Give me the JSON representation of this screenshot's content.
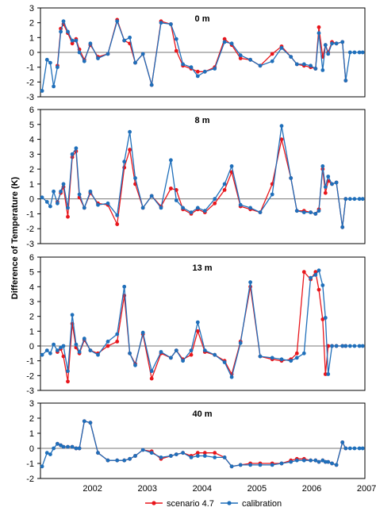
{
  "chart_data": {
    "type": "line",
    "ylabel": "Difference of Temperature (K)",
    "x_ticks": [
      "2002",
      "2003",
      "2004",
      "2005",
      "2006",
      "2007"
    ],
    "legend": {
      "position": "bottom-center",
      "entries": [
        "scenario 4.7",
        "calibration"
      ]
    },
    "colors": {
      "scenario 4.7": "#e8161c",
      "calibration": "#1f6fba"
    },
    "panels": [
      {
        "title": "0 m",
        "ylim": [
          -3,
          3
        ],
        "yticks": [
          -3,
          -2,
          -1,
          0,
          1,
          2,
          3
        ],
        "series": [
          {
            "name": "calibration",
            "x": [
              2001.58,
              2001.67,
              2001.73,
              2001.79,
              2001.86,
              2001.92,
              2001.97,
              2002.05,
              2002.13,
              2002.2,
              2002.26,
              2002.35,
              2002.46,
              2002.6,
              2002.78,
              2002.95,
              2003.08,
              2003.18,
              2003.28,
              2003.42,
              2003.58,
              2003.75,
              2003.93,
              2004.03,
              2004.15,
              2004.3,
              2004.42,
              2004.55,
              2004.73,
              2004.91,
              2005.04,
              2005.2,
              2005.38,
              2005.56,
              2005.78,
              2005.95,
              2006.12,
              2006.23,
              2006.36,
              2006.48,
              2006.57,
              2006.63,
              2006.7,
              2006.75,
              2006.8,
              2006.87,
              2006.95,
              2007.06,
              2007.12,
              2007.2,
              2007.28,
              2007.37,
              2007.43
            ],
            "values": [
              -2.6,
              -0.5,
              -0.7,
              -2.3,
              -1.0,
              1.4,
              2.1,
              1.4,
              0.8,
              0.8,
              0.0,
              -0.6,
              0.6,
              -0.4,
              -0.1,
              2.1,
              0.8,
              1.0,
              -0.7,
              -0.1,
              -2.2,
              2.0,
              1.9,
              0.9,
              -0.8,
              -1.0,
              -1.6,
              -1.3,
              -1.1,
              0.7,
              0.6,
              -0.2,
              -0.5,
              -0.9,
              -0.6,
              0.3,
              -0.3,
              -0.8,
              -0.8,
              -0.9,
              -1.1,
              1.3,
              -1.2,
              0.5,
              -0.1,
              0.6,
              0.6,
              0.7,
              -1.9,
              0,
              0,
              0,
              0
            ]
          },
          {
            "name": "scenario 4.7",
            "x": [
              2001.86,
              2001.92,
              2001.97,
              2002.05,
              2002.13,
              2002.2,
              2002.26,
              2002.35,
              2002.46,
              2002.6,
              2002.78,
              2002.95,
              2003.08,
              2003.18,
              2003.28,
              2003.42,
              2003.58,
              2003.75,
              2003.93,
              2004.03,
              2004.15,
              2004.3,
              2004.42,
              2004.55,
              2004.73,
              2004.91,
              2005.04,
              2005.2,
              2005.38,
              2005.56,
              2005.78,
              2005.95,
              2006.12,
              2006.23,
              2006.36,
              2006.48,
              2006.57,
              2006.63,
              2006.7,
              2006.75,
              2006.8,
              2006.87,
              2006.95,
              2007.06,
              2007.12
            ],
            "values": [
              -0.9,
              1.6,
              1.9,
              1.3,
              0.6,
              0.9,
              0.2,
              -0.5,
              0.5,
              -0.3,
              -0.1,
              2.2,
              0.8,
              0.6,
              -0.7,
              -0.1,
              -2.2,
              2.1,
              1.9,
              0.1,
              -0.9,
              -1.1,
              -1.3,
              -1.3,
              -1.0,
              0.9,
              0.5,
              -0.4,
              -0.5,
              -0.9,
              -0.1,
              0.4,
              -0.3,
              -0.8,
              -0.9,
              -1.0,
              -1.1,
              1.7,
              -0.3,
              0.5,
              0.0,
              0.7,
              0.6,
              0.7,
              -1.9
            ]
          }
        ]
      },
      {
        "title": "8 m",
        "ylim": [
          -3,
          6
        ],
        "yticks": [
          -3,
          -2,
          -1,
          0,
          1,
          2,
          3,
          4,
          5,
          6
        ],
        "series": [
          {
            "name": "calibration",
            "x": [
              2001.58,
              2001.67,
              2001.73,
              2001.79,
              2001.86,
              2001.92,
              2001.97,
              2002.05,
              2002.13,
              2002.2,
              2002.26,
              2002.35,
              2002.46,
              2002.6,
              2002.78,
              2002.95,
              2003.08,
              2003.18,
              2003.28,
              2003.42,
              2003.58,
              2003.75,
              2003.93,
              2004.03,
              2004.15,
              2004.3,
              2004.42,
              2004.55,
              2004.73,
              2004.91,
              2005.04,
              2005.2,
              2005.38,
              2005.56,
              2005.78,
              2005.95,
              2006.12,
              2006.23,
              2006.36,
              2006.48,
              2006.57,
              2006.63,
              2006.7,
              2006.75,
              2006.8,
              2006.87,
              2006.95,
              2007.06,
              2007.12,
              2007.2,
              2007.28,
              2007.37,
              2007.43
            ],
            "values": [
              0.1,
              -0.2,
              -0.5,
              0.5,
              -0.3,
              0.5,
              1.0,
              -0.6,
              3.0,
              3.4,
              0.3,
              -0.6,
              0.5,
              -0.4,
              -0.3,
              -1.1,
              2.5,
              4.5,
              1.4,
              -0.6,
              0.2,
              -0.6,
              2.6,
              -0.1,
              -0.6,
              -0.9,
              -0.6,
              -0.8,
              0.0,
              1.0,
              2.2,
              -0.4,
              -0.6,
              -0.9,
              0.3,
              4.9,
              1.4,
              -0.8,
              -0.9,
              -0.9,
              -1.0,
              -0.8,
              2.2,
              0.8,
              1.5,
              1.0,
              1.1,
              -1.9,
              0,
              0,
              0,
              0,
              0
            ]
          },
          {
            "name": "scenario 4.7",
            "x": [
              2001.86,
              2001.92,
              2001.97,
              2002.05,
              2002.13,
              2002.2,
              2002.26,
              2002.35,
              2002.46,
              2002.6,
              2002.78,
              2002.95,
              2003.08,
              2003.18,
              2003.28,
              2003.42,
              2003.58,
              2003.75,
              2003.93,
              2004.03,
              2004.15,
              2004.3,
              2004.42,
              2004.55,
              2004.73,
              2004.91,
              2005.04,
              2005.2,
              2005.38,
              2005.56,
              2005.78,
              2005.95,
              2006.12,
              2006.23,
              2006.36,
              2006.48,
              2006.57,
              2006.63,
              2006.7,
              2006.75,
              2006.8,
              2006.87,
              2006.95,
              2007.06,
              2007.12
            ],
            "values": [
              -0.2,
              0.4,
              0.8,
              -1.2,
              2.8,
              3.2,
              0.1,
              -0.6,
              0.4,
              -0.3,
              -0.4,
              -1.7,
              2.1,
              3.3,
              1.0,
              -0.6,
              0.2,
              -0.5,
              0.7,
              0.6,
              -0.7,
              -1.0,
              -0.7,
              -0.9,
              -0.3,
              0.6,
              1.8,
              -0.5,
              -0.7,
              -0.9,
              1.0,
              4.0,
              1.4,
              -0.8,
              -0.8,
              -0.9,
              -1.0,
              -0.7,
              2.0,
              0.4,
              1.2,
              1.0,
              1.1,
              -1.9,
              0
            ]
          }
        ]
      },
      {
        "title": "13 m",
        "ylim": [
          -3,
          6
        ],
        "yticks": [
          -3,
          -2,
          -1,
          0,
          1,
          2,
          3,
          4,
          5,
          6
        ],
        "series": [
          {
            "name": "calibration",
            "x": [
              2001.58,
              2001.67,
              2001.73,
              2001.79,
              2001.86,
              2001.92,
              2001.97,
              2002.05,
              2002.13,
              2002.2,
              2002.26,
              2002.35,
              2002.46,
              2002.6,
              2002.78,
              2002.95,
              2003.08,
              2003.18,
              2003.28,
              2003.42,
              2003.58,
              2003.75,
              2003.93,
              2004.03,
              2004.15,
              2004.3,
              2004.42,
              2004.55,
              2004.73,
              2004.91,
              2005.04,
              2005.2,
              2005.38,
              2005.56,
              2005.78,
              2005.95,
              2006.12,
              2006.23,
              2006.36,
              2006.48,
              2006.57,
              2006.63,
              2006.7,
              2006.75,
              2006.8,
              2006.87,
              2006.95,
              2007.06,
              2007.12,
              2007.2,
              2007.28,
              2007.37,
              2007.43
            ],
            "values": [
              -0.6,
              -0.3,
              -0.5,
              0.1,
              -0.3,
              -0.1,
              0.0,
              -1.7,
              2.1,
              0.1,
              -0.4,
              0.5,
              -0.3,
              -0.6,
              0.3,
              0.8,
              4.0,
              -0.5,
              -1.3,
              0.9,
              -1.7,
              -0.4,
              -0.8,
              -0.3,
              -1.0,
              -0.3,
              1.6,
              -0.3,
              -0.6,
              -1.1,
              -2.1,
              0.2,
              4.3,
              -0.7,
              -0.8,
              -0.9,
              -1.0,
              -0.8,
              -0.5,
              4.6,
              4.8,
              5.1,
              4.1,
              1.9,
              -1.9,
              0,
              0,
              0,
              0,
              0,
              0,
              0,
              0
            ]
          },
          {
            "name": "scenario 4.7",
            "x": [
              2001.86,
              2001.92,
              2001.97,
              2002.05,
              2002.13,
              2002.2,
              2002.26,
              2002.35,
              2002.46,
              2002.6,
              2002.78,
              2002.95,
              2003.08,
              2003.18,
              2003.28,
              2003.42,
              2003.58,
              2003.75,
              2003.93,
              2004.03,
              2004.15,
              2004.3,
              2004.42,
              2004.55,
              2004.73,
              2004.91,
              2005.04,
              2005.2,
              2005.38,
              2005.56,
              2005.78,
              2005.95,
              2006.12,
              2006.23,
              2006.36,
              2006.48,
              2006.57,
              2006.63,
              2006.7,
              2006.75,
              2006.8,
              2006.87,
              2006.95,
              2007.06,
              2007.12
            ],
            "values": [
              -0.4,
              -0.2,
              -0.7,
              -2.4,
              1.5,
              -0.1,
              -0.5,
              0.4,
              -0.3,
              -0.5,
              0.0,
              0.3,
              3.4,
              -0.5,
              -1.2,
              0.8,
              -2.2,
              -0.5,
              -0.8,
              -0.3,
              -0.9,
              -0.6,
              1.0,
              -0.4,
              -0.6,
              -1.0,
              -1.9,
              0.3,
              4.0,
              -0.7,
              -0.9,
              -1.0,
              -0.9,
              -0.5,
              5.0,
              4.5,
              5.0,
              3.8,
              1.8,
              -1.9,
              0,
              0,
              0,
              0,
              0
            ]
          }
        ]
      },
      {
        "title": "40 m",
        "ylim": [
          -2,
          3
        ],
        "yticks": [
          -2,
          -1,
          0,
          1,
          2,
          3
        ],
        "series": [
          {
            "name": "calibration",
            "x": [
              2001.58,
              2001.67,
              2001.73,
              2001.79,
              2001.86,
              2001.92,
              2001.97,
              2002.05,
              2002.13,
              2002.2,
              2002.26,
              2002.35,
              2002.46,
              2002.6,
              2002.78,
              2002.95,
              2003.08,
              2003.18,
              2003.28,
              2003.42,
              2003.58,
              2003.75,
              2003.93,
              2004.03,
              2004.15,
              2004.3,
              2004.42,
              2004.55,
              2004.73,
              2004.91,
              2005.04,
              2005.2,
              2005.38,
              2005.56,
              2005.78,
              2005.95,
              2006.12,
              2006.23,
              2006.36,
              2006.48,
              2006.57,
              2006.63,
              2006.7,
              2006.75,
              2006.8,
              2006.87,
              2006.95,
              2007.06,
              2007.12,
              2007.2,
              2007.28,
              2007.37,
              2007.43
            ],
            "values": [
              -1.2,
              -0.3,
              -0.4,
              0.0,
              0.3,
              0.2,
              0.1,
              0.1,
              0.1,
              0.0,
              0.0,
              1.8,
              1.7,
              -0.3,
              -0.8,
              -0.8,
              -0.8,
              -0.7,
              -0.5,
              -0.1,
              -0.3,
              -0.6,
              -0.5,
              -0.4,
              -0.3,
              -0.6,
              -0.5,
              -0.5,
              -0.6,
              -0.6,
              -1.2,
              -1.1,
              -1.1,
              -1.1,
              -1.1,
              -1.0,
              -0.9,
              -0.8,
              -0.8,
              -0.8,
              -0.8,
              -0.9,
              -0.8,
              -0.9,
              -0.9,
              -1.0,
              -1.1,
              0.4,
              0,
              0,
              0,
              0,
              0
            ]
          },
          {
            "name": "scenario 4.7",
            "x": [
              2001.86,
              2001.92,
              2001.97,
              2002.05,
              2002.13,
              2002.2,
              2002.26,
              2002.35,
              2002.46,
              2002.6,
              2002.78,
              2002.95,
              2003.08,
              2003.18,
              2003.28,
              2003.42,
              2003.58,
              2003.75,
              2003.93,
              2004.03,
              2004.15,
              2004.3,
              2004.42,
              2004.55,
              2004.73,
              2004.91,
              2005.04,
              2005.2,
              2005.38,
              2005.56,
              2005.78,
              2005.95,
              2006.12,
              2006.23,
              2006.36,
              2006.48,
              2006.57,
              2006.63,
              2006.7,
              2006.75,
              2006.8,
              2006.87,
              2006.95,
              2007.06,
              2007.12
            ],
            "values": [
              0.3,
              0.2,
              0.1,
              0.1,
              0.1,
              0.0,
              0.0,
              1.8,
              1.7,
              -0.3,
              -0.8,
              -0.8,
              -0.8,
              -0.7,
              -0.5,
              -0.1,
              -0.2,
              -0.7,
              -0.5,
              -0.4,
              -0.3,
              -0.5,
              -0.3,
              -0.3,
              -0.3,
              -0.6,
              -1.2,
              -1.1,
              -1.0,
              -1.0,
              -1.0,
              -1.0,
              -0.8,
              -0.7,
              -0.7,
              -0.8,
              -0.8,
              -0.9,
              -0.8,
              -0.9,
              -0.9,
              -1.0,
              -1.1,
              0.4,
              0
            ]
          }
        ]
      }
    ]
  }
}
